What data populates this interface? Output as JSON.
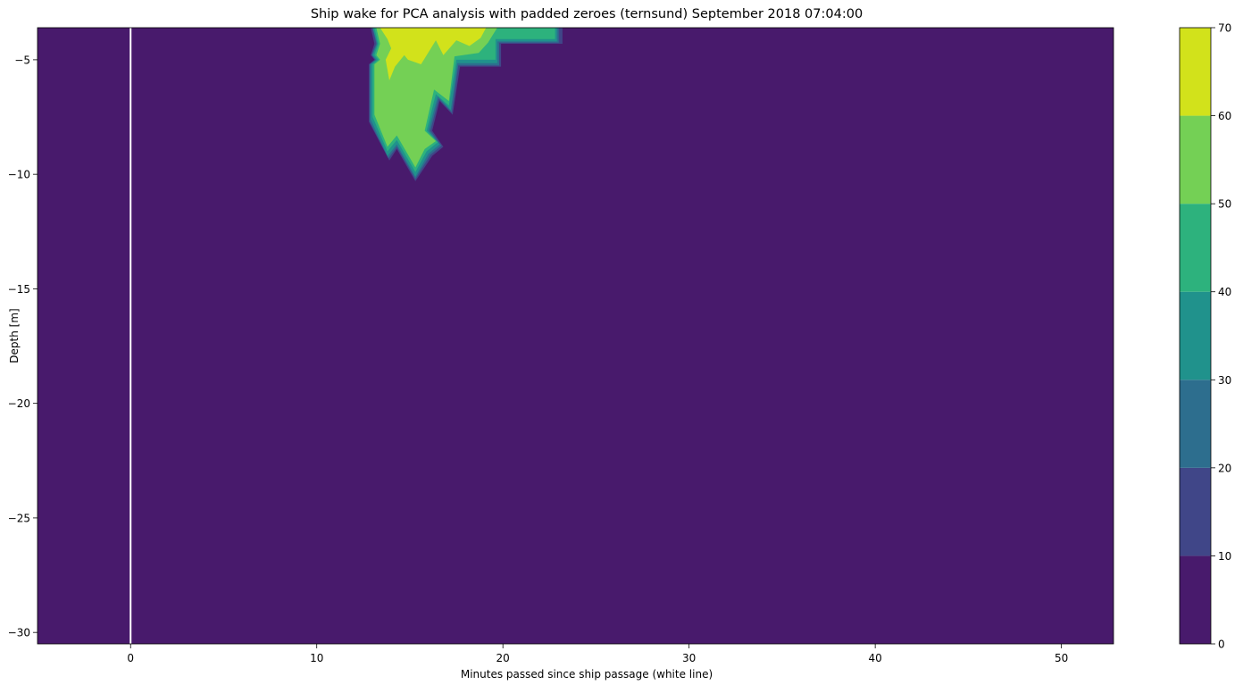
{
  "chart_data": {
    "type": "contourf",
    "title": "Ship wake for PCA analysis with padded zeroes (ternsund) September 2018 07:04:00",
    "xlabel": "Minutes passed since ship passage (white line)",
    "ylabel": "Depth [m]",
    "xlim": [
      -5,
      52.8
    ],
    "ylim": [
      -30.5,
      -3.6
    ],
    "xticks": [
      0,
      10,
      20,
      30,
      40,
      50
    ],
    "xtick_labels": [
      "0",
      "10",
      "20",
      "30",
      "40",
      "50"
    ],
    "yticks": [
      -5,
      -10,
      -15,
      -20,
      -25,
      -30
    ],
    "ytick_labels": [
      "−5",
      "−10",
      "−15",
      "−20",
      "−25",
      "−30"
    ],
    "ship_passage_line_x": 0,
    "colorbar": {
      "levels": [
        0,
        10,
        20,
        30,
        40,
        50,
        60,
        70
      ],
      "tick_labels": [
        "0",
        "10",
        "20",
        "30",
        "40",
        "50",
        "60",
        "70"
      ],
      "colors": [
        "#481a6c",
        "#404688",
        "#2d6e8e",
        "#20928c",
        "#2db27d",
        "#74d055",
        "#d2e21b"
      ]
    },
    "background_level": "0-10",
    "regions": [
      {
        "level": "10-20",
        "points": [
          [
            12.9,
            -3.6
          ],
          [
            23.2,
            -3.6
          ],
          [
            23.2,
            -4.3
          ],
          [
            19.9,
            -4.3
          ],
          [
            19.9,
            -5.3
          ],
          [
            17.7,
            -5.3
          ],
          [
            17.3,
            -7.4
          ],
          [
            16.6,
            -6.8
          ],
          [
            16.2,
            -8.1
          ],
          [
            16.8,
            -8.8
          ],
          [
            16.2,
            -9.2
          ],
          [
            15.3,
            -10.3
          ],
          [
            14.3,
            -8.9
          ],
          [
            13.9,
            -9.4
          ],
          [
            12.8,
            -7.7
          ],
          [
            12.8,
            -5.2
          ],
          [
            13.1,
            -5.0
          ],
          [
            12.9,
            -4.8
          ],
          [
            13.1,
            -4.3
          ]
        ]
      },
      {
        "level": "20-30",
        "points": [
          [
            13.0,
            -3.6
          ],
          [
            23.0,
            -3.6
          ],
          [
            23.0,
            -4.25
          ],
          [
            19.8,
            -4.25
          ],
          [
            19.8,
            -5.25
          ],
          [
            17.6,
            -5.25
          ],
          [
            17.25,
            -7.3
          ],
          [
            16.55,
            -6.7
          ],
          [
            16.1,
            -8.1
          ],
          [
            16.7,
            -8.75
          ],
          [
            16.1,
            -9.15
          ],
          [
            15.3,
            -10.2
          ],
          [
            14.3,
            -8.8
          ],
          [
            13.85,
            -9.3
          ],
          [
            12.85,
            -7.7
          ],
          [
            12.85,
            -5.2
          ],
          [
            13.15,
            -5.0
          ],
          [
            12.95,
            -4.8
          ],
          [
            13.2,
            -4.3
          ]
        ]
      },
      {
        "level": "30-40",
        "points": [
          [
            13.0,
            -3.6
          ],
          [
            22.9,
            -3.6
          ],
          [
            22.9,
            -4.2
          ],
          [
            19.7,
            -4.2
          ],
          [
            19.7,
            -5.15
          ],
          [
            17.55,
            -5.15
          ],
          [
            17.2,
            -7.2
          ],
          [
            16.5,
            -6.6
          ],
          [
            16.0,
            -8.1
          ],
          [
            16.6,
            -8.7
          ],
          [
            16.0,
            -9.1
          ],
          [
            15.3,
            -10.1
          ],
          [
            14.3,
            -8.7
          ],
          [
            13.8,
            -9.2
          ],
          [
            12.9,
            -7.6
          ],
          [
            12.9,
            -5.2
          ],
          [
            13.2,
            -5.0
          ],
          [
            13.0,
            -4.8
          ],
          [
            13.25,
            -4.3
          ]
        ]
      },
      {
        "level": "40-50",
        "points": [
          [
            13.1,
            -3.6
          ],
          [
            22.8,
            -3.6
          ],
          [
            22.8,
            -4.1
          ],
          [
            19.6,
            -4.1
          ],
          [
            19.6,
            -5.0
          ],
          [
            17.5,
            -5.0
          ],
          [
            17.1,
            -7.0
          ],
          [
            16.4,
            -6.5
          ],
          [
            15.9,
            -8.1
          ],
          [
            16.5,
            -8.6
          ],
          [
            15.9,
            -9.0
          ],
          [
            15.3,
            -9.9
          ],
          [
            14.3,
            -8.5
          ],
          [
            13.8,
            -9.0
          ],
          [
            13.0,
            -7.5
          ],
          [
            13.0,
            -5.2
          ],
          [
            13.3,
            -5.0
          ],
          [
            13.1,
            -4.8
          ],
          [
            13.3,
            -4.3
          ]
        ]
      },
      {
        "level": "50-60",
        "points": [
          [
            13.2,
            -3.6
          ],
          [
            19.7,
            -3.6
          ],
          [
            19.2,
            -4.25
          ],
          [
            18.7,
            -4.7
          ],
          [
            17.4,
            -4.85
          ],
          [
            17.1,
            -6.8
          ],
          [
            16.3,
            -6.3
          ],
          [
            15.8,
            -8.1
          ],
          [
            16.4,
            -8.55
          ],
          [
            15.8,
            -8.9
          ],
          [
            15.3,
            -9.7
          ],
          [
            14.3,
            -8.3
          ],
          [
            13.8,
            -8.8
          ],
          [
            13.1,
            -7.4
          ],
          [
            13.1,
            -5.2
          ],
          [
            13.4,
            -5.0
          ],
          [
            13.2,
            -4.8
          ],
          [
            13.4,
            -4.3
          ]
        ]
      },
      {
        "level": "60-70",
        "points": [
          [
            13.4,
            -3.6
          ],
          [
            19.1,
            -3.6
          ],
          [
            18.8,
            -4.05
          ],
          [
            18.2,
            -4.4
          ],
          [
            17.5,
            -4.15
          ],
          [
            16.8,
            -4.8
          ],
          [
            16.4,
            -4.15
          ],
          [
            15.6,
            -5.2
          ],
          [
            14.9,
            -5.0
          ],
          [
            14.7,
            -4.8
          ],
          [
            14.2,
            -5.3
          ],
          [
            13.9,
            -5.9
          ],
          [
            13.7,
            -5.0
          ],
          [
            14.0,
            -4.5
          ],
          [
            13.8,
            -4.1
          ]
        ]
      }
    ]
  }
}
